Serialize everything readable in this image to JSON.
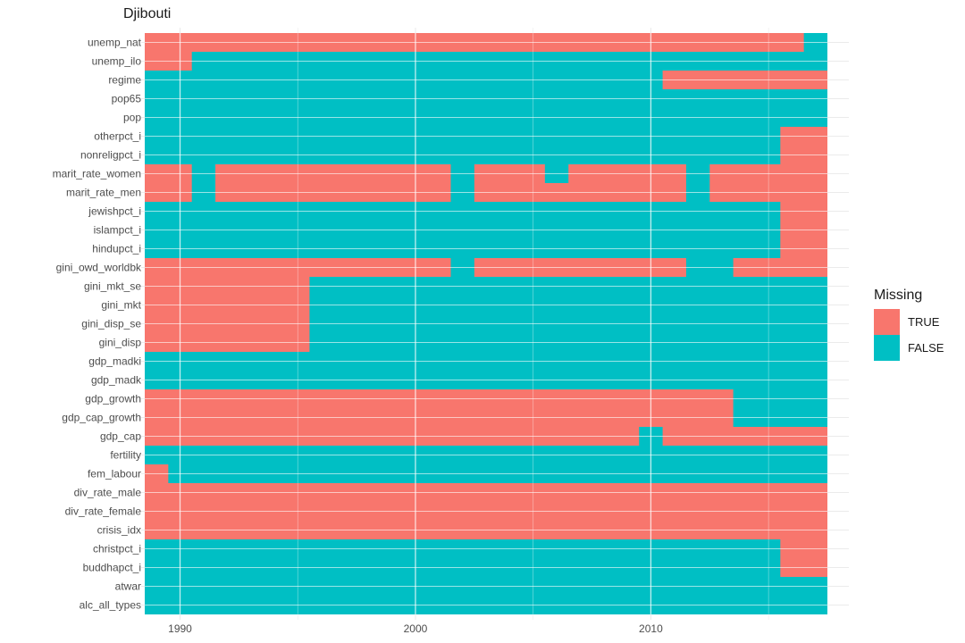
{
  "chart_data": {
    "type": "heatmap",
    "title": "Djibouti",
    "xlabel": "",
    "ylabel": "",
    "x_range": [
      1988.5,
      2017.5
    ],
    "x_ticks": [
      1990,
      2000,
      2010
    ],
    "grid": true,
    "legend": {
      "title": "Missing",
      "position": "right",
      "entries": [
        {
          "label": "TRUE",
          "value": true,
          "color": "#F8766D"
        },
        {
          "label": "FALSE",
          "value": false,
          "color": "#00BFC4"
        }
      ]
    },
    "variables": [
      "unemp_nat",
      "unemp_ilo",
      "regime",
      "pop65",
      "pop",
      "otherpct_i",
      "nonreligpct_i",
      "marit_rate_women",
      "marit_rate_men",
      "jewishpct_i",
      "islampct_i",
      "hindupct_i",
      "gini_owd_worldbk",
      "gini_mkt_se",
      "gini_mkt",
      "gini_disp_se",
      "gini_disp",
      "gdp_madki",
      "gdp_madk",
      "gdp_growth",
      "gdp_cap_growth",
      "gdp_cap",
      "fertility",
      "fem_labour",
      "div_rate_male",
      "div_rate_female",
      "crisis_idx",
      "christpct_i",
      "buddhapct_i",
      "atwar",
      "alc_all_types"
    ],
    "missing_year_ranges": {
      "unemp_nat": [
        [
          1989,
          2016
        ]
      ],
      "unemp_ilo": [
        [
          1989,
          1990
        ]
      ],
      "regime": [
        [
          2011,
          2017
        ]
      ],
      "pop65": [],
      "pop": [],
      "otherpct_i": [
        [
          2016,
          2017
        ]
      ],
      "nonreligpct_i": [
        [
          2016,
          2017
        ]
      ],
      "marit_rate_women": [
        [
          1989,
          1990
        ],
        [
          1992,
          2001
        ],
        [
          2003,
          2005
        ],
        [
          2007,
          2011
        ],
        [
          2013,
          2017
        ]
      ],
      "marit_rate_men": [
        [
          1989,
          1990
        ],
        [
          1992,
          2001
        ],
        [
          2003,
          2011
        ],
        [
          2013,
          2017
        ]
      ],
      "jewishpct_i": [
        [
          2016,
          2017
        ]
      ],
      "islampct_i": [
        [
          2016,
          2017
        ]
      ],
      "hindupct_i": [
        [
          2016,
          2017
        ]
      ],
      "gini_owd_worldbk": [
        [
          1989,
          2001
        ],
        [
          2003,
          2011
        ],
        [
          2014,
          2017
        ]
      ],
      "gini_mkt_se": [
        [
          1989,
          1995
        ]
      ],
      "gini_mkt": [
        [
          1989,
          1995
        ]
      ],
      "gini_disp_se": [
        [
          1989,
          1995
        ]
      ],
      "gini_disp": [
        [
          1989,
          1995
        ]
      ],
      "gdp_madki": [],
      "gdp_madk": [],
      "gdp_growth": [
        [
          1989,
          2013
        ]
      ],
      "gdp_cap_growth": [
        [
          1989,
          2013
        ]
      ],
      "gdp_cap": [
        [
          1989,
          2009
        ],
        [
          2011,
          2017
        ]
      ],
      "fertility": [],
      "fem_labour": [
        [
          1989,
          1989
        ]
      ],
      "div_rate_male": [
        [
          1989,
          2017
        ]
      ],
      "div_rate_female": [
        [
          1989,
          2017
        ]
      ],
      "crisis_idx": [
        [
          1989,
          2017
        ]
      ],
      "christpct_i": [
        [
          2016,
          2017
        ]
      ],
      "buddhapct_i": [
        [
          2016,
          2017
        ]
      ],
      "atwar": [],
      "alc_all_types": []
    }
  }
}
